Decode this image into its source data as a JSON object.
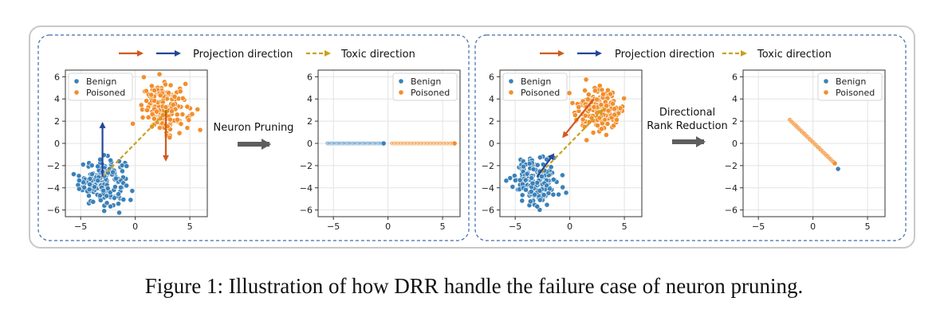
{
  "figure": {
    "caption": "Figure 1: Illustration of how DRR handle the failure case of neuron pruning.",
    "panels": [
      {
        "legend_projection": "Projection direction",
        "legend_toxic": "Toxic direction",
        "operation": [
          "Neuron Pruning"
        ]
      },
      {
        "legend_projection": "Projection direction",
        "legend_toxic": "Toxic direction",
        "operation": [
          "Directional",
          "Rank Reduction"
        ]
      }
    ]
  },
  "colors": {
    "benign": "#3b81b8",
    "poisoned": "#f28e2c",
    "proj_orange": "#cf5a1e",
    "proj_blue": "#23469a",
    "toxic": "#c9a21d",
    "op_arrow": "#5e5e5e",
    "panel_border": "#3d6aa8",
    "outer_border": "#c8c8c8"
  },
  "chart_data": [
    {
      "type": "scatter",
      "name_key": "left_before",
      "xlim": [
        -6.4,
        6.6
      ],
      "ylim": [
        -6.6,
        6.6
      ],
      "xticks": [
        -5,
        0,
        5
      ],
      "yticks": [
        6,
        4,
        2,
        0,
        -2,
        -4,
        -6
      ],
      "grid": true,
      "legend": "top-left",
      "series": [
        {
          "name": "Benign",
          "cluster": {
            "center": [
              -3,
              -3.4
            ],
            "spread": 1.05,
            "count": 180
          }
        },
        {
          "name": "Poisoned",
          "cluster": {
            "center": [
              2.8,
              3.1
            ],
            "spread": 1.05,
            "count": 180
          }
        }
      ],
      "arrows": [
        {
          "kind": "toxic",
          "from": [
            -3,
            -3
          ],
          "to": [
            3,
            3
          ]
        },
        {
          "kind": "blue",
          "from": [
            -3,
            -3
          ],
          "to": [
            -3,
            1.8
          ]
        },
        {
          "kind": "orange",
          "from": [
            2.8,
            3
          ],
          "to": [
            2.8,
            -1.5
          ]
        }
      ]
    },
    {
      "type": "scatter",
      "name_key": "left_after",
      "xlim": [
        -6.4,
        6.6
      ],
      "ylim": [
        -6.6,
        6.6
      ],
      "xticks": [
        -5,
        0,
        5
      ],
      "yticks": [
        6,
        4,
        2,
        0,
        -2,
        -4,
        -6
      ],
      "grid": true,
      "legend": "top-right",
      "series": [
        {
          "name": "Benign",
          "line": {
            "from": [
              -5.5,
              0
            ],
            "to": [
              -0.4,
              0
            ],
            "count": 60
          }
        },
        {
          "name": "Poisoned",
          "line": {
            "from": [
              0.4,
              0
            ],
            "to": [
              6.1,
              0
            ],
            "count": 60
          }
        }
      ],
      "arrows": []
    },
    {
      "type": "scatter",
      "name_key": "right_before",
      "xlim": [
        -6.4,
        6.6
      ],
      "ylim": [
        -6.6,
        6.6
      ],
      "xticks": [
        -5,
        0,
        5
      ],
      "yticks": [
        6,
        4,
        2,
        0,
        -2,
        -4,
        -6
      ],
      "grid": true,
      "legend": "top-left",
      "series": [
        {
          "name": "Benign",
          "cluster": {
            "center": [
              -3,
              -3.4
            ],
            "spread": 1.05,
            "count": 180
          }
        },
        {
          "name": "Poisoned",
          "cluster": {
            "center": [
              2.8,
              3.1
            ],
            "spread": 1.05,
            "count": 180
          }
        }
      ],
      "arrows": [
        {
          "kind": "toxic",
          "from": [
            -3,
            -3
          ],
          "to": [
            3,
            3
          ]
        },
        {
          "kind": "blue",
          "from": [
            -3,
            -3
          ],
          "to": [
            -1.5,
            -1
          ]
        },
        {
          "kind": "orange",
          "from": [
            2.2,
            4
          ],
          "to": [
            -0.6,
            0.6
          ]
        }
      ]
    },
    {
      "type": "scatter",
      "name_key": "right_after",
      "xlim": [
        -6.4,
        6.6
      ],
      "ylim": [
        -6.6,
        6.6
      ],
      "xticks": [
        -5,
        0,
        5
      ],
      "yticks": [
        6,
        4,
        2,
        0,
        -2,
        -4,
        -6
      ],
      "grid": true,
      "legend": "top-right",
      "series": [
        {
          "name": "Poisoned",
          "line": {
            "from": [
              -2.1,
              2.1
            ],
            "to": [
              2.0,
              -1.8
            ],
            "count": 40
          }
        },
        {
          "name": "Benign",
          "points": [
            [
              2.3,
              -2.3
            ]
          ]
        }
      ],
      "arrows": []
    }
  ]
}
